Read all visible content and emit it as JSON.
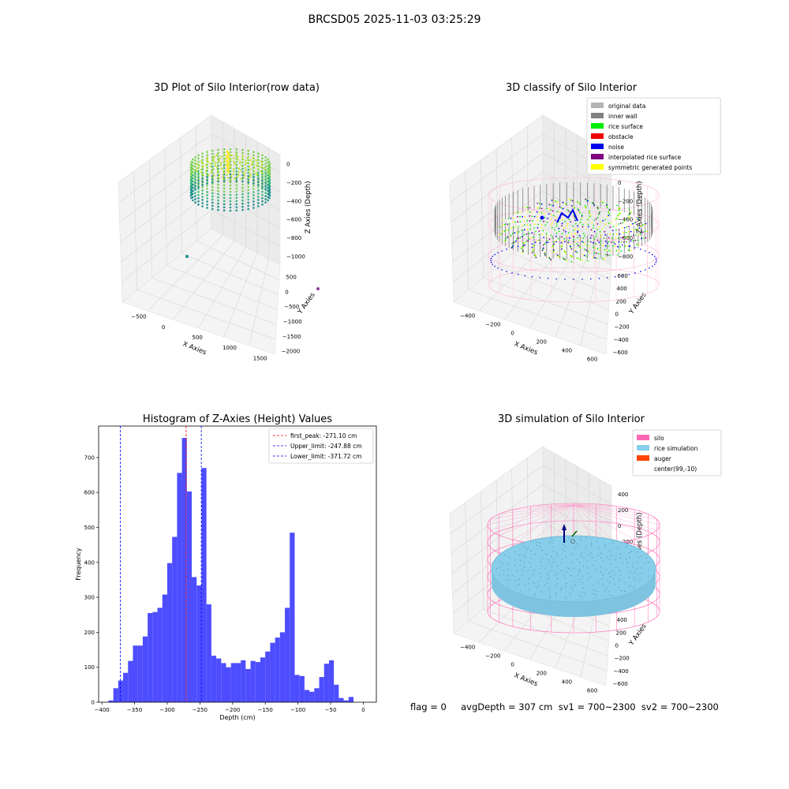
{
  "figure": {
    "title": "BRCSD05 2025-11-03 03:25:29",
    "status_text": "flag = 0     avgDepth = 307 cm  sv1 = 700~2300  sv2 = 700~2300"
  },
  "chart_data": [
    {
      "type": "scatter",
      "title": "3D Plot of Silo Interior(row data)",
      "xlabel": "X Axies",
      "ylabel": "Y Axies",
      "zlabel": "Z Axies (Depth)",
      "x_ticks": [
        "−500",
        "0",
        "500",
        "1000",
        "1500"
      ],
      "y_ticks": [
        "500",
        "0",
        "−500",
        "−1000",
        "−1500",
        "−2000"
      ],
      "z_ticks": [
        "0",
        "−200",
        "−400",
        "−600",
        "−800",
        "−1000"
      ],
      "xlim": [
        -600,
        1900
      ],
      "ylim": [
        -2000,
        700
      ],
      "zlim": [
        -1000,
        0
      ],
      "outliers": [
        {
          "x": -400,
          "y": -1700,
          "z": -1000,
          "color": "#21918c"
        },
        {
          "x": 1800,
          "y": 300,
          "z": -1000,
          "color": "#8e3f9a"
        }
      ],
      "colormap": "viridis"
    },
    {
      "type": "scatter",
      "title": "3D classify of Silo Interior",
      "xlabel": "X Axies",
      "ylabel": "Y Axies",
      "zlabel": "Z Axies (Depth)",
      "x_ticks": [
        "−400",
        "−200",
        "0",
        "200",
        "400",
        "600"
      ],
      "y_ticks": [
        "600",
        "400",
        "200",
        "0",
        "−200",
        "−400",
        "−600"
      ],
      "z_ticks": [
        "200",
        "0",
        "−200",
        "−400",
        "−600",
        "−800"
      ],
      "legend": [
        {
          "label": "original data",
          "color": "#b3b3b3"
        },
        {
          "label": "inner wall",
          "color": "#808080"
        },
        {
          "label": "rice surface",
          "color": "#00ee00"
        },
        {
          "label": "obstacle",
          "color": "#ee0000"
        },
        {
          "label": "noise",
          "color": "#0000ee"
        },
        {
          "label": "interpolated rice surface",
          "color": "#800080"
        },
        {
          "label": "symmetric generated points",
          "color": "#ffff00"
        }
      ],
      "legend_loc": "top-right"
    },
    {
      "type": "bar",
      "title": "Histogram of Z-Axies (Height) Values",
      "xlabel": "Depth (cm)",
      "ylabel": "Frequency",
      "bar_color": "#4d4dff",
      "xlim": [
        -405,
        20
      ],
      "ylim": [
        0,
        790
      ],
      "x_ticks": [
        -400,
        -350,
        -300,
        -250,
        -200,
        -150,
        -100,
        -50,
        0
      ],
      "y_ticks": [
        0,
        100,
        200,
        300,
        400,
        500,
        600,
        700
      ],
      "bin_start": -390,
      "bin_width": 7.5,
      "values": [
        5,
        40,
        62,
        84,
        118,
        162,
        162,
        188,
        255,
        258,
        270,
        308,
        398,
        473,
        656,
        756,
        603,
        358,
        334,
        670,
        280,
        133,
        125,
        112,
        100,
        112,
        112,
        120,
        95,
        118,
        115,
        128,
        145,
        170,
        185,
        200,
        270,
        485,
        78,
        75,
        35,
        30,
        40,
        72,
        110,
        120,
        50,
        12,
        5,
        15
      ],
      "lines": [
        {
          "label": "first_peak: -271.10 cm",
          "x": -271.1,
          "color": "#ff0000"
        },
        {
          "label": "Upper_limit: -247.88 cm",
          "x": -247.88,
          "color": "#0000ff"
        },
        {
          "label": "Lower_limit: -371.72 cm",
          "x": -371.72,
          "color": "#0000ff"
        }
      ],
      "legend_loc": "top-right"
    },
    {
      "type": "scatter",
      "title": "3D simulation of Silo Interior",
      "xlabel": "X Axies",
      "ylabel": "Y Axies",
      "zlabel": "Z Axies (Depth)",
      "x_ticks": [
        "−400",
        "−200",
        "0",
        "200",
        "400",
        "600"
      ],
      "y_ticks": [
        "600",
        "400",
        "200",
        "0",
        "−200",
        "−400",
        "−600"
      ],
      "z_ticks": [
        "400",
        "200",
        "0",
        "−200",
        "−400",
        "−600",
        "−800"
      ],
      "legend": [
        {
          "label": "silo",
          "color": "#ff69b4"
        },
        {
          "label": "rice simulation",
          "color": "#87ceeb"
        },
        {
          "label": "auger",
          "color": "#ff4500"
        },
        {
          "label": "center(99,-10)",
          "color": ""
        }
      ],
      "legend_loc": "top-right"
    }
  ]
}
